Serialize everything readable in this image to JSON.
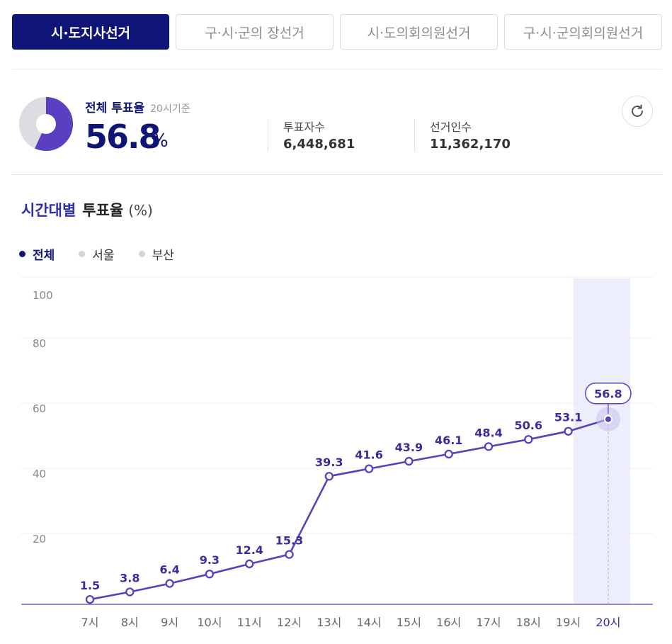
{
  "tabs": [
    {
      "label": "시·도지사선거",
      "active": true
    },
    {
      "label": "구·시·군의 장선거",
      "active": false
    },
    {
      "label": "시·도의회의원선거",
      "active": false
    },
    {
      "label": "구·시·군의회의원선거",
      "active": false
    }
  ],
  "summary": {
    "label": "전체 투표율",
    "time_note": "20시기준",
    "rate": "56.8",
    "rate_unit": "%",
    "rate_value": 56.8,
    "voters_label": "투표자수",
    "voters_value": "6,448,681",
    "electorate_label": "선거인수",
    "electorate_value": "11,362,170",
    "refresh_icon": "refresh-icon"
  },
  "section": {
    "title_a": "시간대별",
    "title_b": "투표율",
    "title_unit": "(%)"
  },
  "legend": [
    {
      "label": "전체",
      "active": true
    },
    {
      "label": "서울",
      "active": false
    },
    {
      "label": "부산",
      "active": false
    }
  ],
  "colors": {
    "navy": "#0f1577",
    "line": "#5a3fc0",
    "donut_fill": "#5a3fc0",
    "donut_rest": "#dcdde1",
    "legend_inactive": "#d5d5d9",
    "highlight_band": "#eceefc"
  },
  "chart_data": {
    "type": "line",
    "categories": [
      "7시",
      "8시",
      "9시",
      "10시",
      "11시",
      "12시",
      "13시",
      "14시",
      "15시",
      "16시",
      "17시",
      "18시",
      "19시",
      "20시"
    ],
    "series": [
      {
        "name": "전체",
        "values": [
          1.5,
          3.8,
          6.4,
          9.3,
          12.4,
          15.3,
          39.3,
          41.6,
          43.9,
          46.1,
          48.4,
          50.6,
          53.1,
          56.8
        ]
      }
    ],
    "data_labels": [
      "1.5",
      "3.8",
      "6.4",
      "9.3",
      "12.4",
      "15.3",
      "39.3",
      "41.6",
      "43.9",
      "46.1",
      "48.4",
      "50.6",
      "53.1",
      "56.8"
    ],
    "y_ticks": [
      "20",
      "40",
      "60",
      "80",
      "100"
    ],
    "ylim": [
      0,
      100
    ],
    "highlight_category": "20시",
    "grid": true
  }
}
